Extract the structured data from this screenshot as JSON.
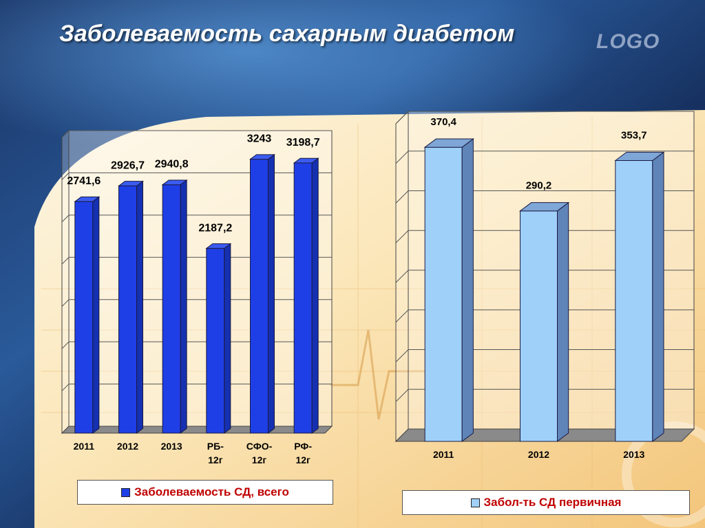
{
  "slide": {
    "title": "Заболеваемость сахарным диабетом",
    "logo": "LOGO"
  },
  "colors": {
    "left_bar": "#1f3fe6",
    "left_bar_side": "#1530b0",
    "left_bar_top": "#3b5cf0",
    "right_bar": "#9fd0fa",
    "right_bar_side": "#5f84b8",
    "right_bar_top": "#7ea6d6",
    "legend_text": "#c00000"
  },
  "chart_data": [
    {
      "type": "bar",
      "categories": [
        "2011",
        "2012",
        "2013",
        "РБ-12г",
        "СФО-12г",
        "РФ-12г"
      ],
      "category_lines": [
        [
          "2011"
        ],
        [
          "2012"
        ],
        [
          "2013"
        ],
        [
          "РБ-",
          "12г"
        ],
        [
          "СФО-",
          "12г"
        ],
        [
          "РФ-",
          "12г"
        ]
      ],
      "series": [
        {
          "name": "Заболеваемость СД, всего",
          "values": [
            2741.6,
            2926.7,
            2940.8,
            2187.2,
            3243,
            3198.7
          ]
        }
      ],
      "data_labels": [
        "2741,6",
        "2926,7",
        "2940,8",
        "2187,2",
        "3243",
        "3198,7"
      ],
      "ylim": [
        0,
        3500
      ],
      "grid": true,
      "legend": "bottom"
    },
    {
      "type": "bar",
      "categories": [
        "2011",
        "2012",
        "2013"
      ],
      "category_lines": [
        [
          "2011"
        ],
        [
          "2012"
        ],
        [
          "2013"
        ]
      ],
      "series": [
        {
          "name": "Забол-ть СД первичная",
          "values": [
            370.4,
            290.2,
            353.7
          ]
        }
      ],
      "data_labels": [
        "370,4",
        "290,2",
        "353,7"
      ],
      "ylim": [
        0,
        400
      ],
      "grid": true,
      "legend": "bottom"
    }
  ]
}
